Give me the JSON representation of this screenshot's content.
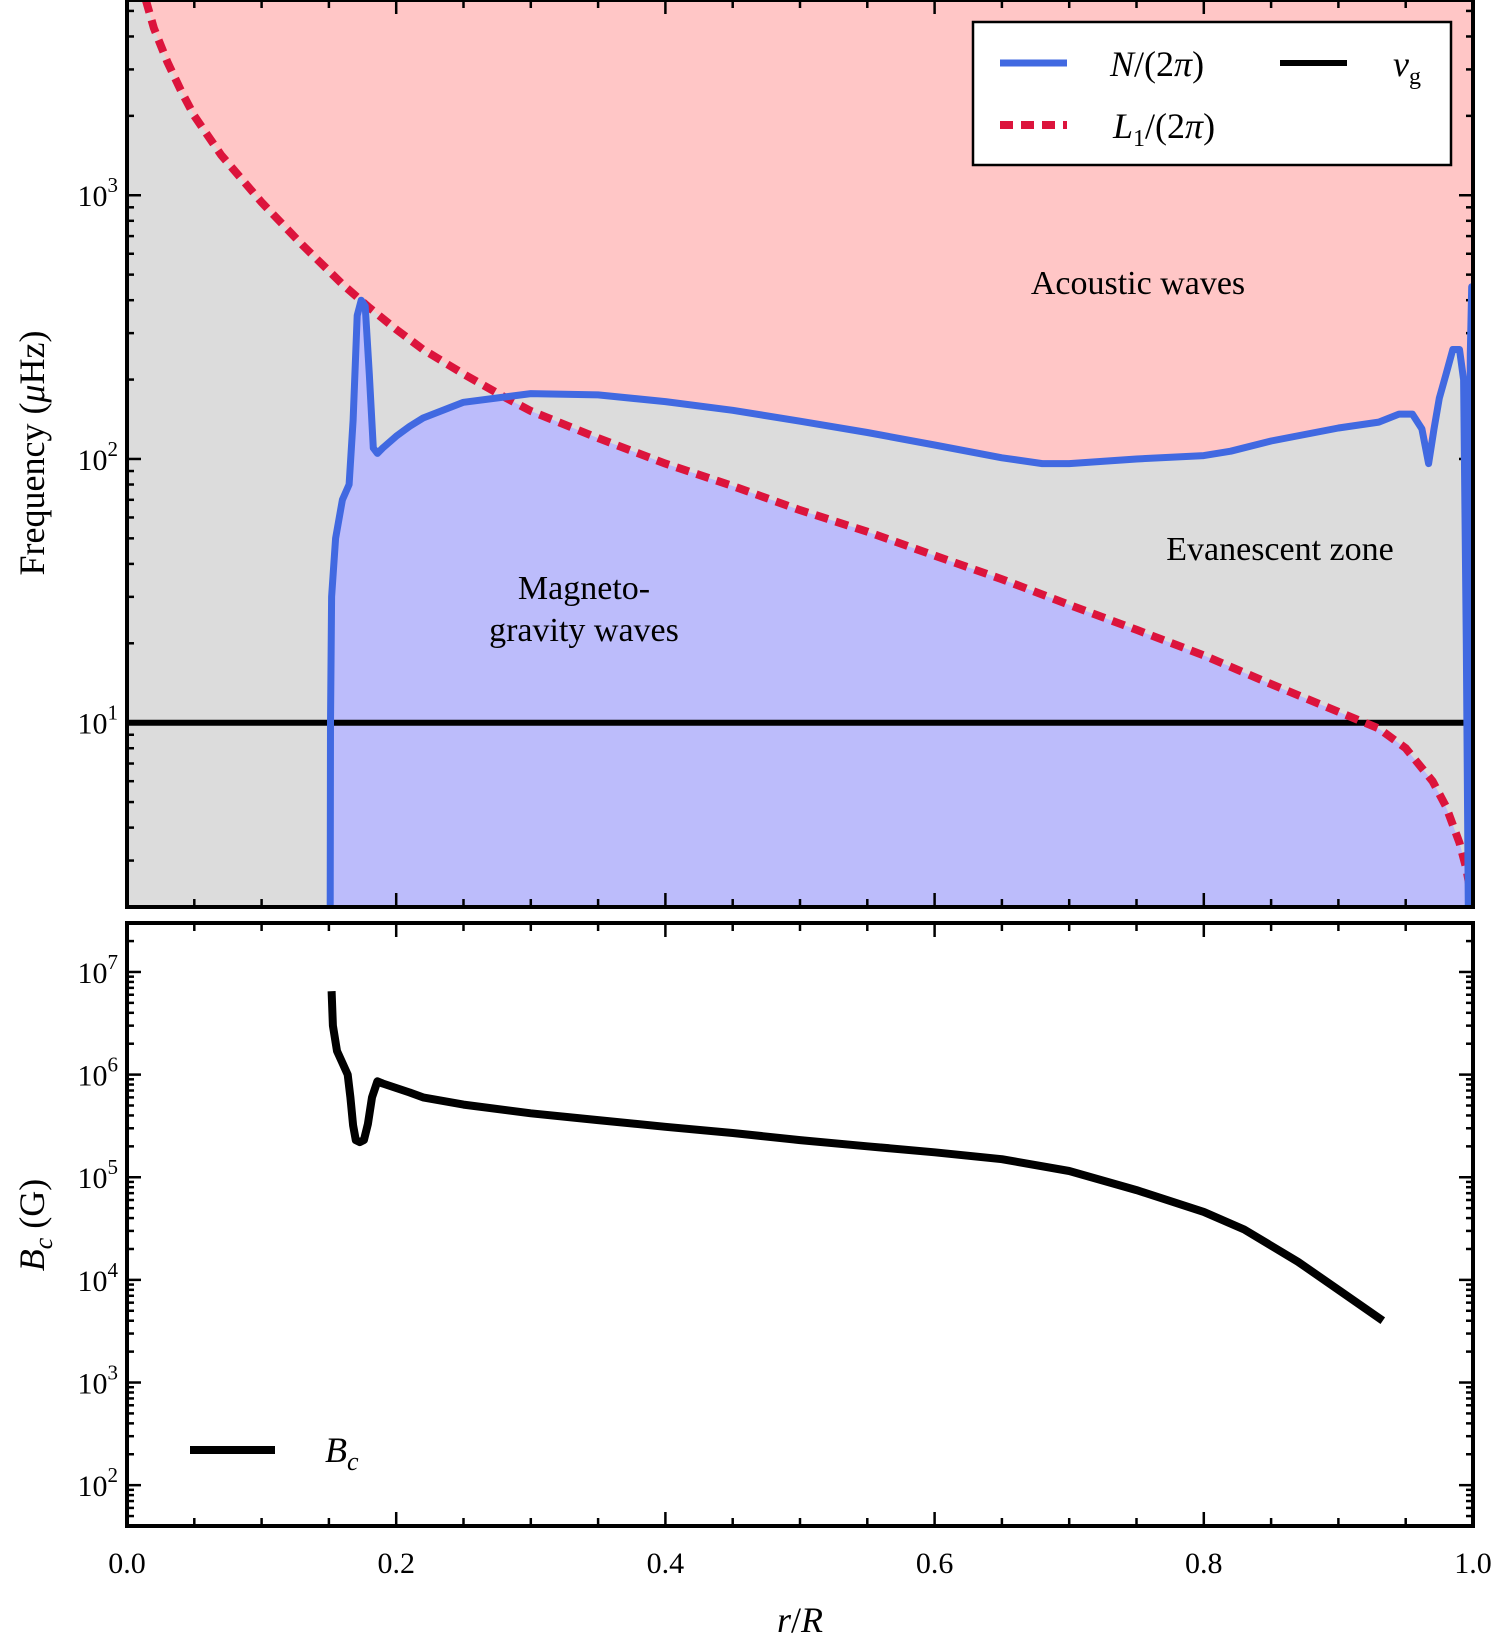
{
  "colors": {
    "n_line": "#4169E1",
    "l1_line": "#DC143C",
    "nu_line": "#000000",
    "bc_line": "#000000",
    "acoustic_fill": "#FFC6C6",
    "evanescent_fill": "#DCDCDC",
    "gravity_fill": "#BCBCFB"
  },
  "chart_data": [
    {
      "type": "line",
      "panel": "top",
      "ylabel_parts": [
        "Frequency (",
        "μ",
        "Hz)"
      ],
      "xlim": [
        0.0,
        1.0
      ],
      "ylim": [
        2,
        5500
      ],
      "yscale": "log",
      "yticks": [
        {
          "value": 10,
          "base": "10",
          "exp": "1"
        },
        {
          "value": 100,
          "base": "10",
          "exp": "2"
        },
        {
          "value": 1000,
          "base": "10",
          "exp": "3"
        }
      ],
      "legend": {
        "position": "top-right",
        "entries": [
          {
            "key": "n",
            "parts": [
              "N",
              "/(2",
              "π",
              ")"
            ]
          },
          {
            "key": "nu",
            "parts": [
              "ν",
              "g"
            ]
          },
          {
            "key": "l1",
            "parts": [
              "L",
              "1",
              "/(2",
              "π",
              ")"
            ]
          }
        ]
      },
      "annotations": [
        {
          "key": "acoustic",
          "lines": [
            "Acoustic waves"
          ]
        },
        {
          "key": "evanescent",
          "lines": [
            "Evanescent zone"
          ]
        },
        {
          "key": "gravity",
          "lines": [
            "Magneto-",
            "gravity waves"
          ]
        }
      ],
      "series": [
        {
          "key": "n",
          "x": [
            0.151,
            0.1512,
            0.152,
            0.155,
            0.16,
            0.165,
            0.168,
            0.171,
            0.174,
            0.177,
            0.18,
            0.183,
            0.186,
            0.19,
            0.2,
            0.21,
            0.22,
            0.25,
            0.3,
            0.35,
            0.4,
            0.45,
            0.5,
            0.55,
            0.6,
            0.65,
            0.68,
            0.7,
            0.75,
            0.8,
            0.82,
            0.85,
            0.9,
            0.93,
            0.945,
            0.955,
            0.962,
            0.967,
            0.971,
            0.975,
            0.98,
            0.985,
            0.99,
            0.993,
            0.995,
            0.9965,
            0.998,
            0.999
          ],
          "y": [
            2.0,
            10,
            30,
            50,
            70,
            80,
            140,
            350,
            400,
            380,
            210,
            110,
            105,
            110,
            122,
            133,
            143,
            164,
            177,
            175,
            165,
            153,
            139,
            126,
            113,
            101,
            96,
            96,
            100,
            103,
            107,
            117,
            131,
            138,
            148,
            148,
            130,
            96,
            130,
            170,
            210,
            260,
            260,
            200,
            20,
            2.0,
            250,
            450
          ]
        },
        {
          "key": "l1",
          "x": [
            0.014,
            0.02,
            0.03,
            0.04,
            0.05,
            0.07,
            0.1,
            0.13,
            0.16,
            0.18,
            0.2,
            0.22,
            0.25,
            0.28,
            0.3,
            0.35,
            0.4,
            0.45,
            0.5,
            0.55,
            0.6,
            0.65,
            0.7,
            0.75,
            0.8,
            0.85,
            0.9,
            0.93,
            0.95,
            0.97,
            0.98,
            0.99,
            0.995,
            0.998,
            1.0
          ],
          "y": [
            5500,
            4300,
            3200,
            2500,
            2000,
            1420,
            940,
            650,
            460,
            375,
            310,
            260,
            210,
            172,
            152,
            120,
            96,
            79,
            64,
            53,
            43,
            35,
            28,
            22.5,
            18,
            14,
            11,
            9.5,
            8.0,
            6.0,
            4.8,
            3.5,
            2.8,
            2.3,
            2.0
          ]
        },
        {
          "key": "nu",
          "x": [
            0.0,
            1.0
          ],
          "y": [
            10,
            10
          ]
        }
      ]
    },
    {
      "type": "line",
      "panel": "bottom",
      "xlabel_parts": [
        "r",
        "/",
        "R"
      ],
      "ylabel_parts": [
        "B",
        "c",
        " (G)"
      ],
      "xlim": [
        0.0,
        1.0
      ],
      "ylim": [
        40,
        30000000
      ],
      "yscale": "log",
      "xticks": [
        {
          "value": 0.0,
          "label": "0.0"
        },
        {
          "value": 0.2,
          "label": "0.2"
        },
        {
          "value": 0.4,
          "label": "0.4"
        },
        {
          "value": 0.6,
          "label": "0.6"
        },
        {
          "value": 0.8,
          "label": "0.8"
        },
        {
          "value": 1.0,
          "label": "1.0"
        }
      ],
      "yticks": [
        {
          "value": 100,
          "base": "10",
          "exp": "2"
        },
        {
          "value": 1000,
          "base": "10",
          "exp": "3"
        },
        {
          "value": 10000,
          "base": "10",
          "exp": "4"
        },
        {
          "value": 100000,
          "base": "10",
          "exp": "5"
        },
        {
          "value": 1000000,
          "base": "10",
          "exp": "6"
        },
        {
          "value": 10000000,
          "base": "10",
          "exp": "7"
        }
      ],
      "legend": {
        "position": "lower-left",
        "entries": [
          {
            "key": "bc",
            "parts": [
              "B",
              "c"
            ]
          }
        ]
      },
      "series": [
        {
          "key": "bc",
          "x": [
            0.152,
            0.153,
            0.156,
            0.16,
            0.164,
            0.166,
            0.168,
            0.17,
            0.173,
            0.176,
            0.179,
            0.182,
            0.186,
            0.19,
            0.2,
            0.21,
            0.22,
            0.25,
            0.3,
            0.35,
            0.4,
            0.45,
            0.5,
            0.55,
            0.6,
            0.65,
            0.7,
            0.75,
            0.8,
            0.83,
            0.87,
            0.9,
            0.933
          ],
          "y": [
            6500000,
            3000000,
            1700000,
            1300000,
            1000000,
            600000,
            320000,
            230000,
            220000,
            230000,
            330000,
            600000,
            860000,
            820000,
            740000,
            670000,
            600000,
            510000,
            420000,
            360000,
            310000,
            270000,
            230000,
            200000,
            175000,
            150000,
            115000,
            75000,
            46000,
            31000,
            15000,
            8000,
            4000
          ]
        }
      ]
    }
  ]
}
